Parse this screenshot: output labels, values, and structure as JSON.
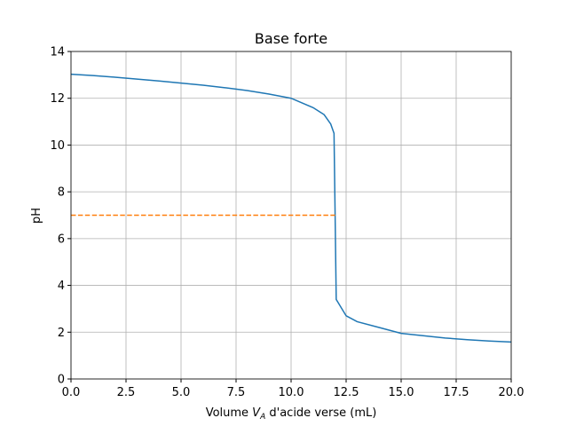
{
  "chart_data": {
    "type": "line",
    "title": "Base forte",
    "xlabel_parts": [
      "Volume ",
      "V",
      "A",
      " d'acide verse (mL)"
    ],
    "ylabel": "pH",
    "xlim": [
      0,
      20
    ],
    "ylim": [
      0,
      14
    ],
    "xticks": [
      {
        "value": 0,
        "label": "0.0"
      },
      {
        "value": 2.5,
        "label": "2.5"
      },
      {
        "value": 5,
        "label": "5.0"
      },
      {
        "value": 7.5,
        "label": "7.5"
      },
      {
        "value": 10,
        "label": "10.0"
      },
      {
        "value": 12.5,
        "label": "12.5"
      },
      {
        "value": 15,
        "label": "15.0"
      },
      {
        "value": 17.5,
        "label": "17.5"
      },
      {
        "value": 20,
        "label": "20.0"
      }
    ],
    "yticks": [
      0,
      2,
      4,
      6,
      8,
      10,
      12,
      14
    ],
    "grid": true,
    "series": [
      {
        "color": "#1f77b4",
        "dash": false,
        "x": [
          0,
          1,
          2,
          3,
          4,
          5,
          6,
          7,
          8,
          9,
          10,
          11,
          11.5,
          11.8,
          11.95,
          12,
          12.05,
          12.5,
          13,
          14,
          15,
          16,
          17,
          18,
          19,
          20
        ],
        "values": [
          13.03,
          12.97,
          12.9,
          12.82,
          12.74,
          12.65,
          12.56,
          12.45,
          12.33,
          12.18,
          12.0,
          11.6,
          11.3,
          10.9,
          10.5,
          7.0,
          3.4,
          2.7,
          2.45,
          2.2,
          1.95,
          1.85,
          1.75,
          1.68,
          1.62,
          1.58
        ]
      },
      {
        "color": "#ff7f0e",
        "dash": true,
        "x": [
          0,
          12
        ],
        "values": [
          7,
          7
        ]
      }
    ]
  }
}
